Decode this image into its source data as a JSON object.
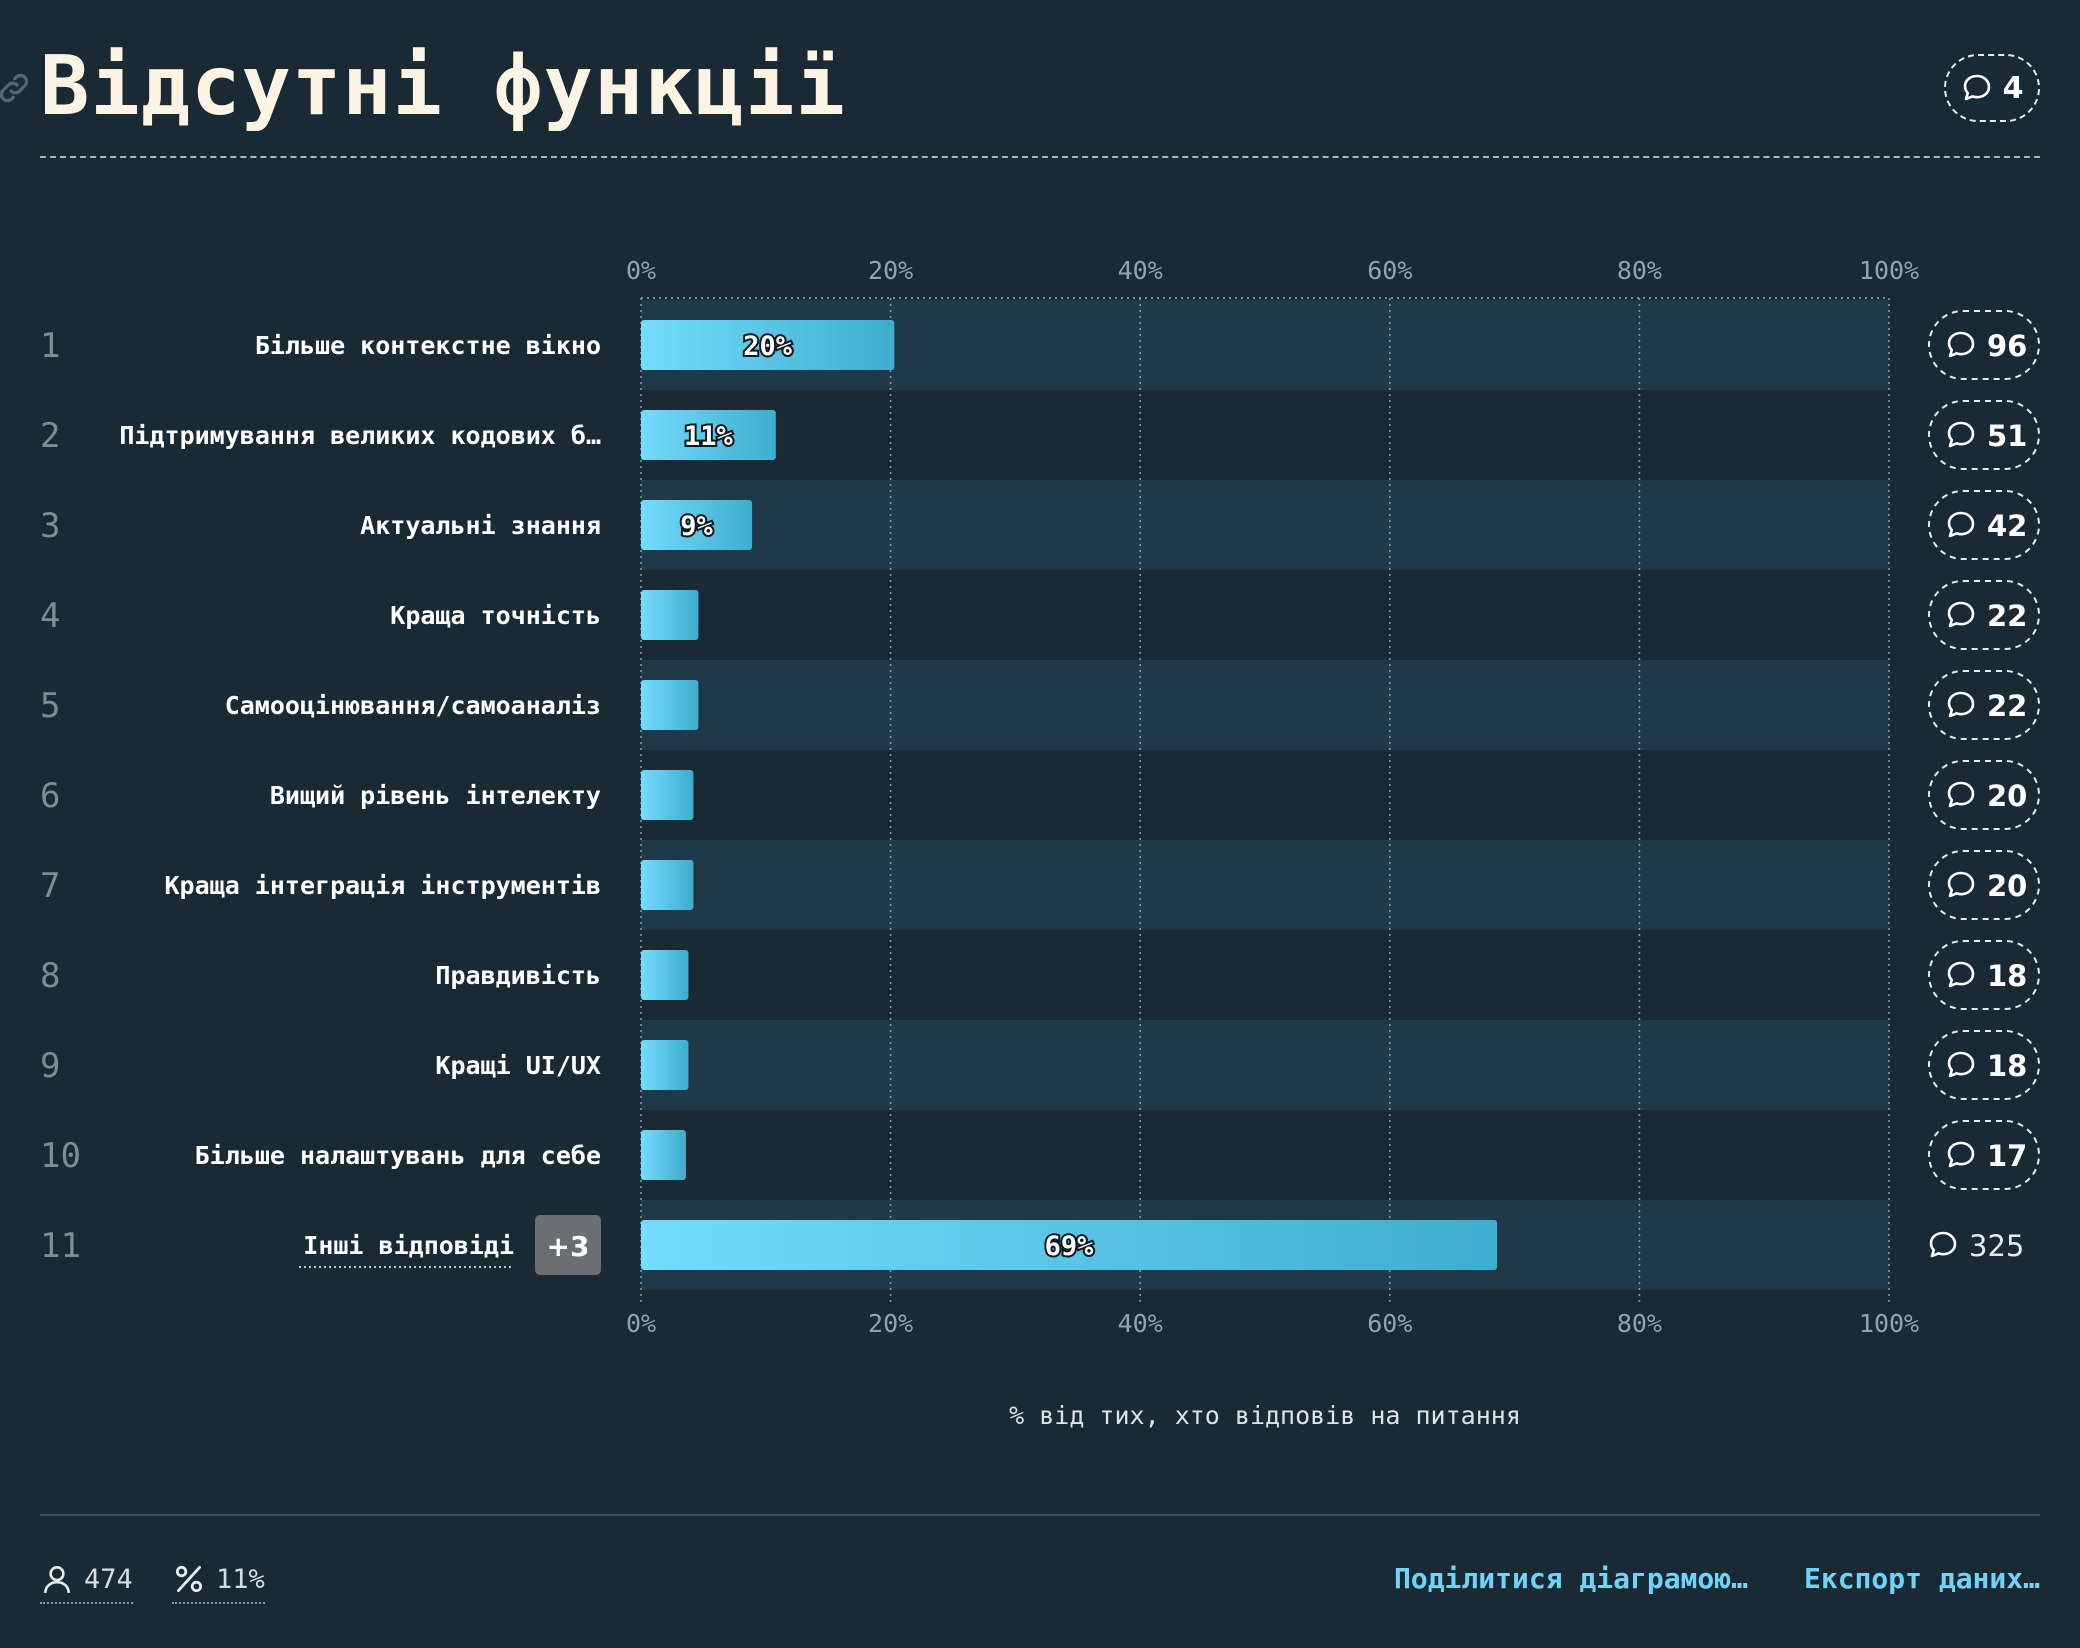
{
  "header": {
    "title": "Відсутні функції",
    "comment_count": "4"
  },
  "chart_data": {
    "type": "bar",
    "orientation": "horizontal",
    "xlabel": "% від тих, хто відповів на питання",
    "xlim": [
      0,
      100
    ],
    "ticks": [
      "0%",
      "20%",
      "40%",
      "60%",
      "80%",
      "100%"
    ],
    "tick_values": [
      0,
      20,
      40,
      60,
      80,
      100
    ],
    "grid": true,
    "rows": [
      {
        "rank": "1",
        "label": "Більше контекстне вікно",
        "value": 20.3,
        "value_label": "20%",
        "comments": "96"
      },
      {
        "rank": "2",
        "label": "Підтримування великих кодових б…",
        "value": 10.8,
        "value_label": "11%",
        "comments": "51"
      },
      {
        "rank": "3",
        "label": "Актуальні знання",
        "value": 8.9,
        "value_label": "9%",
        "comments": "42"
      },
      {
        "rank": "4",
        "label": "Краща точність",
        "value": 4.6,
        "value_label": "",
        "comments": "22"
      },
      {
        "rank": "5",
        "label": "Самооцінювання/самоаналіз",
        "value": 4.6,
        "value_label": "",
        "comments": "22"
      },
      {
        "rank": "6",
        "label": "Вищий рівень інтелекту",
        "value": 4.2,
        "value_label": "",
        "comments": "20"
      },
      {
        "rank": "7",
        "label": "Краща інтеграція інструментів",
        "value": 4.2,
        "value_label": "",
        "comments": "20"
      },
      {
        "rank": "8",
        "label": "Правдивість",
        "value": 3.8,
        "value_label": "",
        "comments": "18"
      },
      {
        "rank": "9",
        "label": "Кращі UI/UX",
        "value": 3.8,
        "value_label": "",
        "comments": "18"
      },
      {
        "rank": "10",
        "label": "Більше налаштувань для себе",
        "value": 3.6,
        "value_label": "",
        "comments": "17"
      },
      {
        "rank": "11",
        "label": "Інші відповіді",
        "value": 68.6,
        "value_label": "69%",
        "comments": "325",
        "badge": "+3"
      }
    ]
  },
  "footer": {
    "respondents": "474",
    "percent": "11%",
    "share_label": "Поділитися діаграмою…",
    "export_label": "Експорт даних…"
  },
  "colors": {
    "background": "#192a35",
    "row_stripe": "#203948",
    "bar_light": "#74dcfc",
    "bar_dark": "#3fadcf",
    "title": "#fdf4e3",
    "link": "#6fd4f7",
    "badge": "#6b6f72"
  },
  "icons": {
    "link": "link-icon",
    "comment": "comment-bubble-icon",
    "user": "user-icon",
    "percent": "percent-icon"
  }
}
